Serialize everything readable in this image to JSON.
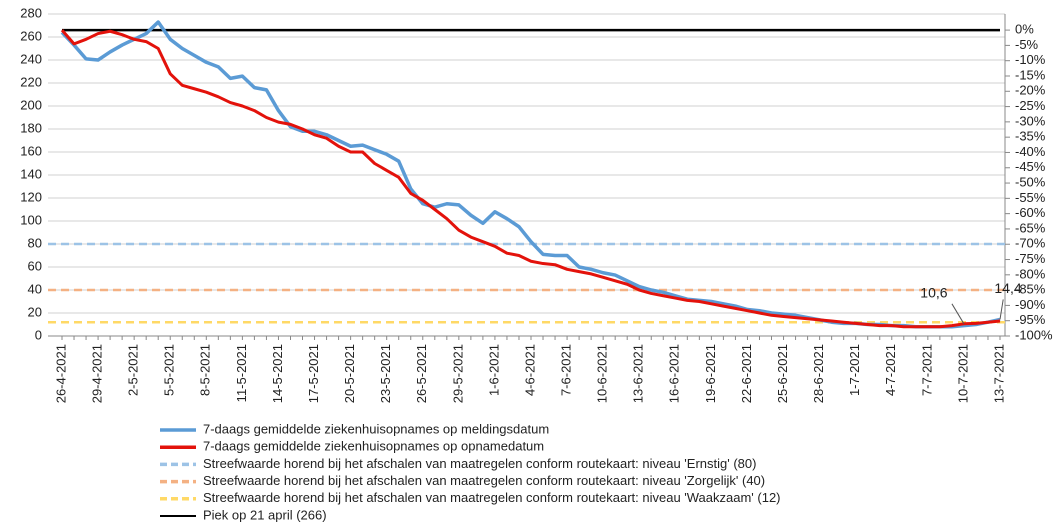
{
  "chart_data": {
    "type": "line",
    "categories": [
      "26-4-2021",
      null,
      null,
      "29-4-2021",
      null,
      null,
      "2-5-2021",
      null,
      null,
      "5-5-2021",
      null,
      null,
      "8-5-2021",
      null,
      null,
      "11-5-2021",
      null,
      null,
      "14-5-2021",
      null,
      null,
      "17-5-2021",
      null,
      null,
      "20-5-2021",
      null,
      null,
      "23-5-2021",
      null,
      null,
      "26-5-2021",
      null,
      null,
      "29-5-2021",
      null,
      null,
      "1-6-2021",
      null,
      null,
      "4-6-2021",
      null,
      null,
      "7-6-2021",
      null,
      null,
      "10-6-2021",
      null,
      null,
      "13-6-2021",
      null,
      null,
      "16-6-2021",
      null,
      null,
      "19-6-2021",
      null,
      null,
      "22-6-2021",
      null,
      null,
      "25-6-2021",
      null,
      null,
      "28-6-2021",
      null,
      null,
      "1-7-2021",
      null,
      null,
      "4-7-2021",
      null,
      null,
      "7-7-2021",
      null,
      null,
      "10-7-2021",
      null,
      null,
      "13-7-2021"
    ],
    "series": [
      {
        "name": "7-daags gemiddelde ziekenhuisopnames op meldingsdatum",
        "color": "#5b9bd5",
        "values": [
          264,
          253,
          241,
          240,
          247,
          253,
          258,
          263,
          273,
          258,
          250,
          244,
          238,
          234,
          224,
          226,
          216,
          214,
          196,
          182,
          178,
          178,
          175,
          170,
          165,
          166,
          162,
          158,
          152,
          128,
          115,
          112,
          115,
          114,
          105,
          98,
          108,
          102,
          95,
          82,
          71,
          70,
          70,
          60,
          58,
          55,
          53,
          48,
          43,
          40,
          38,
          35,
          32,
          31,
          30,
          28,
          26,
          23,
          22,
          20,
          19,
          18,
          16,
          14,
          12,
          11,
          11,
          10,
          10,
          9,
          9,
          8,
          8,
          8,
          8,
          9,
          10,
          12,
          14.4
        ],
        "value_labels": [
          null,
          null,
          null,
          null,
          null,
          null,
          null,
          null,
          null,
          null,
          null,
          null,
          null,
          null,
          null,
          null,
          null,
          null,
          null,
          null,
          null,
          null,
          null,
          null,
          null,
          null,
          null,
          null,
          null,
          null,
          null,
          null,
          null,
          null,
          null,
          null,
          null,
          null,
          null,
          null,
          null,
          null,
          null,
          null,
          null,
          null,
          null,
          null,
          null,
          null,
          null,
          null,
          null,
          null,
          null,
          null,
          null,
          null,
          null,
          null,
          null,
          null,
          null,
          null,
          null,
          null,
          null,
          null,
          null,
          null,
          null,
          null,
          null,
          null,
          null,
          null,
          null,
          null,
          "14,4"
        ]
      },
      {
        "name": "7-daags gemiddelde ziekenhuisopnames op opnamedatum",
        "color": "#e3120b",
        "values": [
          266,
          254,
          258,
          263,
          265,
          262,
          258,
          256,
          250,
          228,
          218,
          215,
          212,
          208,
          203,
          200,
          196,
          190,
          186,
          184,
          180,
          175,
          172,
          165,
          160,
          160,
          150,
          144,
          138,
          124,
          118,
          110,
          102,
          92,
          86,
          82,
          78,
          72,
          70,
          65,
          63,
          62,
          58,
          56,
          54,
          51,
          48,
          45,
          40,
          37,
          35,
          33,
          31,
          30,
          28,
          26,
          24,
          22,
          20,
          18,
          17,
          16,
          15,
          14,
          13,
          12,
          11,
          10,
          9,
          9,
          8,
          8,
          8,
          8,
          9,
          10.6,
          11,
          12,
          13
        ],
        "value_labels": [
          null,
          null,
          null,
          null,
          null,
          null,
          null,
          null,
          null,
          null,
          null,
          null,
          null,
          null,
          null,
          null,
          null,
          null,
          null,
          null,
          null,
          null,
          null,
          null,
          null,
          null,
          null,
          null,
          null,
          null,
          null,
          null,
          null,
          null,
          null,
          null,
          null,
          null,
          null,
          null,
          null,
          null,
          null,
          null,
          null,
          null,
          null,
          null,
          null,
          null,
          null,
          null,
          null,
          null,
          null,
          null,
          null,
          null,
          null,
          null,
          null,
          null,
          null,
          null,
          null,
          null,
          null,
          null,
          null,
          null,
          null,
          null,
          null,
          null,
          null,
          "10,6",
          null,
          null,
          null
        ]
      }
    ],
    "reference_lines": [
      {
        "name": "Streefwaarde horend bij het afschalen van maatregelen conform routekaart: niveau 'Ernstig' (80)",
        "value": 80,
        "color": "#9dc3e6"
      },
      {
        "name": "Streefwaarde horend bij het afschalen van maatregelen conform routekaart: niveau 'Zorgelijk' (40)",
        "value": 40,
        "color": "#f4b183"
      },
      {
        "name": "Streefwaarde horend bij het afschalen van maatregelen conform routekaart: niveau 'Waakzaam' (12)",
        "value": 12,
        "color": "#ffd966"
      }
    ],
    "peak_line": {
      "name": "Piek op 21 april (266)",
      "value": 266,
      "color": "#000000"
    },
    "ylim": [
      0,
      280
    ],
    "yticks": [
      0,
      20,
      40,
      60,
      80,
      100,
      120,
      140,
      160,
      180,
      200,
      220,
      240,
      260,
      280
    ],
    "y2lim": [
      -100,
      0
    ],
    "y2ticks": [
      {
        "value": 0,
        "label": "0%"
      },
      {
        "value": -5,
        "label": "-5%"
      },
      {
        "value": -10,
        "label": "-10%"
      },
      {
        "value": -15,
        "label": "-15%"
      },
      {
        "value": -20,
        "label": "-20%"
      },
      {
        "value": -25,
        "label": "-25%"
      },
      {
        "value": -30,
        "label": "-30%"
      },
      {
        "value": -35,
        "label": "-35%"
      },
      {
        "value": -40,
        "label": "-40%"
      },
      {
        "value": -45,
        "label": "-45%"
      },
      {
        "value": -50,
        "label": "-50%"
      },
      {
        "value": -55,
        "label": "-55%"
      },
      {
        "value": -60,
        "label": "-60%"
      },
      {
        "value": -65,
        "label": "-65%"
      },
      {
        "value": -70,
        "label": "-70%"
      },
      {
        "value": -75,
        "label": "-75%"
      },
      {
        "value": -80,
        "label": "-80%"
      },
      {
        "value": -85,
        "label": "-85%"
      },
      {
        "value": -90,
        "label": "-90%"
      },
      {
        "value": -95,
        "label": "-95%"
      },
      {
        "value": -100,
        "label": "-100%"
      }
    ],
    "grid": true
  }
}
